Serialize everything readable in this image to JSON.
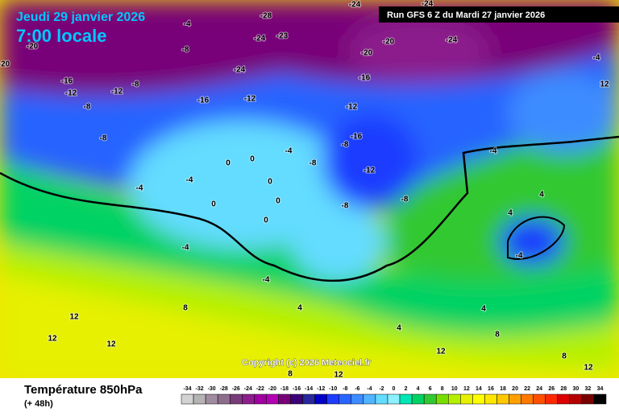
{
  "header": {
    "date": "Jeudi 29 janvier 2026",
    "time": "7:00 locale",
    "run": "Run GFS 6 Z du Mardi 27 janvier 2026"
  },
  "copyright": "Copyright (c) 2026 Meteociel.fr",
  "footer": {
    "title": "Température 850hPa",
    "lead": "(+ 48h)"
  },
  "scale": {
    "values": [
      -34,
      -32,
      -30,
      -28,
      -26,
      -24,
      -22,
      -20,
      -18,
      -16,
      -14,
      -12,
      -10,
      -8,
      -6,
      -4,
      -2,
      0,
      2,
      4,
      6,
      8,
      10,
      12,
      14,
      16,
      18,
      20,
      22,
      24,
      26,
      28,
      30,
      32,
      34
    ],
    "colors": [
      "#d2d2d2",
      "#b4b4b4",
      "#a08ca0",
      "#8c6e8c",
      "#783c78",
      "#8c1e8c",
      "#a000a0",
      "#b400b4",
      "#780078",
      "#3c0078",
      "#28289c",
      "#0000c8",
      "#1e3cff",
      "#2864ff",
      "#3c8cff",
      "#50b4ff",
      "#64dcff",
      "#8cf0ff",
      "#00e6b4",
      "#00d264",
      "#32c832",
      "#78dc00",
      "#b4f000",
      "#e6f000",
      "#ffff00",
      "#ffe600",
      "#ffc800",
      "#ffa000",
      "#ff7800",
      "#ff5000",
      "#ff2800",
      "#dc0000",
      "#b40000",
      "#780000",
      "#000000"
    ]
  },
  "map": {
    "labels": [
      "-20",
      "-20",
      "-4",
      "-8",
      "-28",
      "-23",
      "-24",
      "-24",
      "-24",
      "-20",
      "-24",
      "-20",
      "-16",
      "-24",
      "-16",
      "-12",
      "-12",
      "-8",
      "-8",
      "-8",
      "-16",
      "-12",
      "-12",
      "-16",
      "-8",
      "-12",
      "-8",
      "-8",
      "-8",
      "-4",
      "-4",
      "-4",
      "0",
      "0",
      "0",
      "0",
      "0",
      "-4",
      "0",
      "-4",
      "4",
      "4",
      "-4",
      "8",
      "12",
      "12",
      "12",
      "12",
      "12",
      "-4",
      "-4",
      "4",
      "4",
      "8",
      "8",
      "12",
      "4",
      "8",
      "12"
    ]
  }
}
